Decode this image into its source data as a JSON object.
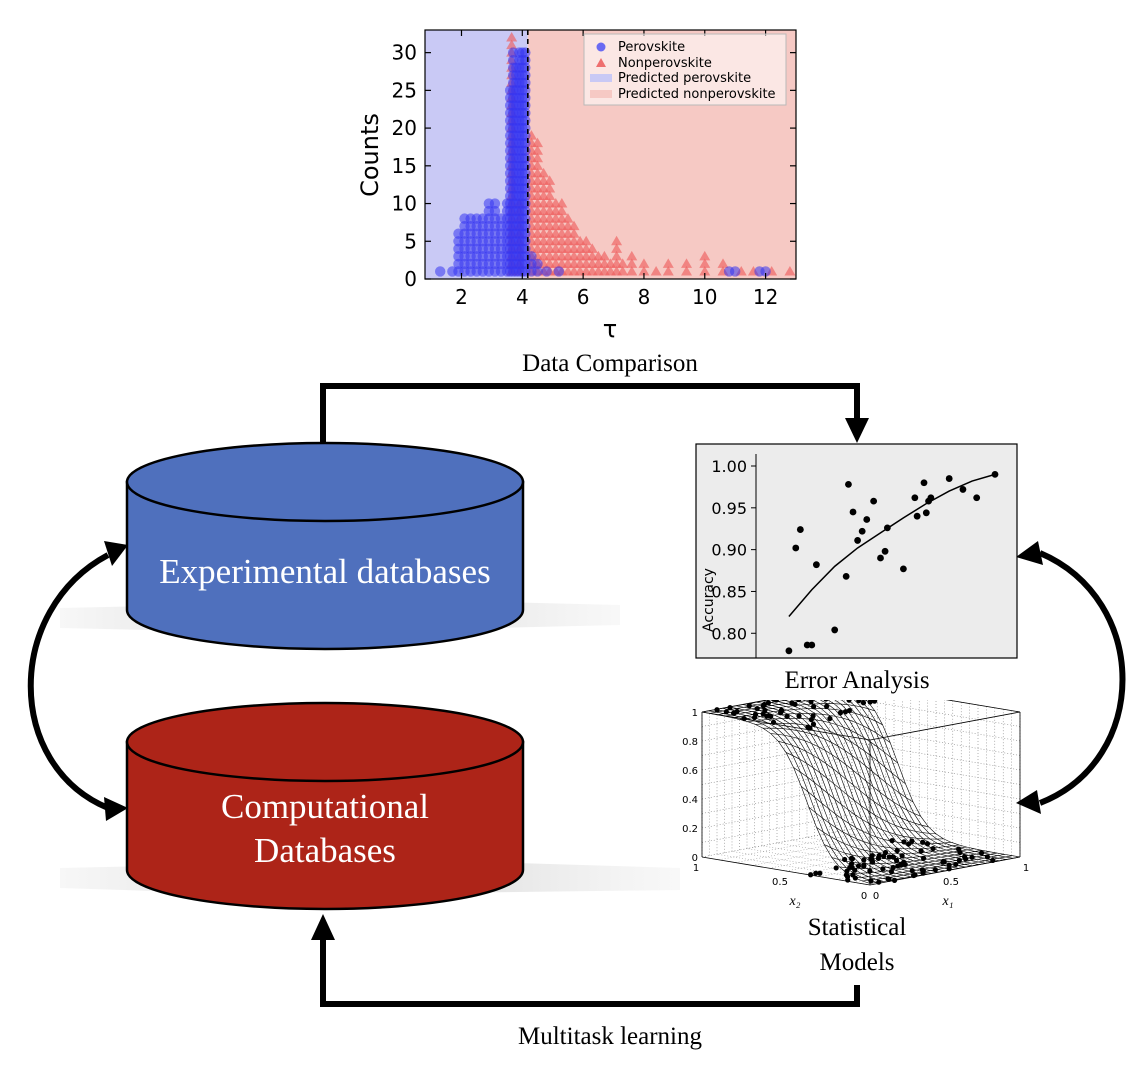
{
  "colors": {
    "experimental_db": "#4f70bd",
    "computational_db": "#ad2418",
    "perovskite_point": "#3535f0",
    "nonperovskite_point": "#ee5f5f",
    "predicted_perovskite_fill": "#c9c9f5",
    "predicted_nonperovskite_fill": "#f6c9c4",
    "error_panel_bg": "#ececec",
    "arrow": "#000000"
  },
  "labels": {
    "data_comparison": "Data Comparison",
    "error_analysis": "Error Analysis",
    "statistical_models_line1": "Statistical",
    "statistical_models_line2": "Models",
    "multitask_learning": "Multitask learning",
    "experimental_db": "Experimental databases",
    "computational_db_line1": "Computational",
    "computational_db_line2": "Databases"
  },
  "chart_data": [
    {
      "type": "scatter",
      "xlabel": "τ",
      "ylabel": "Counts",
      "xlim": [
        0.8,
        13.0
      ],
      "ylim": [
        0,
        33
      ],
      "xticks": [
        2,
        4,
        6,
        8,
        10,
        12
      ],
      "yticks": [
        0,
        5,
        10,
        15,
        20,
        25,
        30
      ],
      "threshold": 4.18,
      "legend": {
        "position": "top-right",
        "entries": [
          "Perovskite",
          "Nonperovskite",
          "Predicted perovskite",
          "Predicted nonperovskite"
        ]
      },
      "series": [
        {
          "name": "Perovskite",
          "marker": "circle",
          "bins": [
            [
              1.3,
              1
            ],
            [
              1.7,
              1
            ],
            [
              1.9,
              6
            ],
            [
              2.1,
              8
            ],
            [
              2.3,
              8
            ],
            [
              2.5,
              8
            ],
            [
              2.7,
              8
            ],
            [
              2.9,
              10
            ],
            [
              3.1,
              10
            ],
            [
              3.3,
              8
            ],
            [
              3.5,
              10
            ],
            [
              3.6,
              25
            ],
            [
              3.7,
              30
            ],
            [
              3.8,
              28
            ],
            [
              3.9,
              30
            ],
            [
              4.0,
              30
            ],
            [
              4.1,
              30
            ],
            [
              4.3,
              3
            ],
            [
              4.5,
              2
            ],
            [
              4.8,
              1
            ],
            [
              5.2,
              1
            ],
            [
              10.8,
              1
            ],
            [
              11.0,
              1
            ],
            [
              11.8,
              1
            ],
            [
              12.0,
              1
            ]
          ]
        },
        {
          "name": "Nonperovskite",
          "marker": "triangle",
          "bins": [
            [
              3.65,
              32
            ],
            [
              3.9,
              10
            ],
            [
              4.3,
              19
            ],
            [
              4.5,
              18
            ],
            [
              4.7,
              14
            ],
            [
              4.9,
              13
            ],
            [
              5.1,
              10
            ],
            [
              5.3,
              10
            ],
            [
              5.5,
              8
            ],
            [
              5.7,
              7
            ],
            [
              5.9,
              5
            ],
            [
              6.1,
              5
            ],
            [
              6.3,
              4
            ],
            [
              6.5,
              3
            ],
            [
              6.7,
              3
            ],
            [
              6.9,
              2
            ],
            [
              7.1,
              5
            ],
            [
              7.3,
              2
            ],
            [
              7.6,
              3
            ],
            [
              8.0,
              2
            ],
            [
              8.4,
              1
            ],
            [
              8.8,
              2
            ],
            [
              9.4,
              2
            ],
            [
              10.0,
              3
            ],
            [
              10.6,
              2
            ],
            [
              11.2,
              1
            ],
            [
              11.6,
              1
            ],
            [
              12.2,
              1
            ],
            [
              12.8,
              1
            ]
          ]
        }
      ]
    },
    {
      "type": "scatter",
      "title": "",
      "ylabel": "Accuracy",
      "ylim": [
        0.78,
        1.0
      ],
      "yticks": [
        "1.00",
        "0.95",
        "0.90",
        "0.85",
        "0.80"
      ],
      "points": [
        [
          0.1,
          0.779
        ],
        [
          0.13,
          0.902
        ],
        [
          0.15,
          0.924
        ],
        [
          0.18,
          0.786
        ],
        [
          0.2,
          0.786
        ],
        [
          0.22,
          0.882
        ],
        [
          0.3,
          0.804
        ],
        [
          0.35,
          0.868
        ],
        [
          0.36,
          0.978
        ],
        [
          0.38,
          0.945
        ],
        [
          0.4,
          0.911
        ],
        [
          0.42,
          0.922
        ],
        [
          0.44,
          0.936
        ],
        [
          0.47,
          0.958
        ],
        [
          0.5,
          0.89
        ],
        [
          0.52,
          0.898
        ],
        [
          0.53,
          0.926
        ],
        [
          0.6,
          0.877
        ],
        [
          0.65,
          0.962
        ],
        [
          0.66,
          0.94
        ],
        [
          0.69,
          0.98
        ],
        [
          0.7,
          0.944
        ],
        [
          0.71,
          0.958
        ],
        [
          0.72,
          0.962
        ],
        [
          0.8,
          0.985
        ],
        [
          0.86,
          0.972
        ],
        [
          0.92,
          0.962
        ],
        [
          1.0,
          0.99
        ]
      ],
      "fit_curve": [
        [
          0.1,
          0.82
        ],
        [
          0.2,
          0.852
        ],
        [
          0.3,
          0.88
        ],
        [
          0.4,
          0.902
        ],
        [
          0.5,
          0.92
        ],
        [
          0.6,
          0.938
        ],
        [
          0.7,
          0.955
        ],
        [
          0.8,
          0.97
        ],
        [
          0.9,
          0.982
        ],
        [
          1.0,
          0.99
        ]
      ]
    },
    {
      "type": "surface",
      "xlabel": "x₁",
      "ylabel": "x₂",
      "xticks": [
        "0",
        "0.5",
        "1"
      ],
      "yticks": [
        "1",
        "0.5",
        "0"
      ],
      "zticks": [
        "0",
        "0.2",
        "0.4",
        "0.6",
        "0.8",
        "1"
      ]
    }
  ]
}
